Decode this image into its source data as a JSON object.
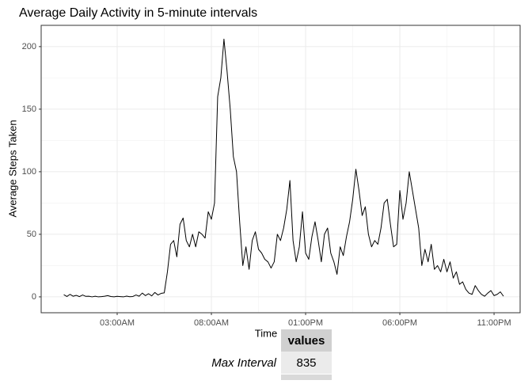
{
  "chart_data": {
    "type": "line",
    "title": "Average Daily Activity in 5-minute intervals",
    "x_label": "Time",
    "y_label": "Average Steps Taken",
    "color": "#000000",
    "grid": true,
    "x": [
      10,
      20,
      30,
      40,
      50,
      60,
      70,
      80,
      90,
      100,
      110,
      120,
      130,
      140,
      150,
      160,
      170,
      180,
      190,
      200,
      210,
      220,
      230,
      240,
      250,
      260,
      270,
      280,
      290,
      300,
      310,
      320,
      330,
      340,
      350,
      360,
      370,
      380,
      390,
      400,
      410,
      420,
      430,
      440,
      450,
      460,
      470,
      480,
      490,
      500,
      510,
      520,
      530,
      540,
      550,
      560,
      570,
      580,
      590,
      600,
      610,
      620,
      630,
      640,
      650,
      660,
      670,
      680,
      690,
      700,
      710,
      720,
      730,
      740,
      750,
      760,
      770,
      780,
      790,
      800,
      810,
      820,
      830,
      840,
      850,
      860,
      870,
      880,
      890,
      900,
      910,
      920,
      930,
      940,
      950,
      960,
      970,
      980,
      990,
      1000,
      1010,
      1020,
      1030,
      1040,
      1050,
      1060,
      1070,
      1080,
      1090,
      1100,
      1110,
      1120,
      1130,
      1140,
      1150,
      1160,
      1170,
      1180,
      1190,
      1200,
      1210,
      1220,
      1230,
      1240,
      1250,
      1260,
      1270,
      1280,
      1290,
      1300,
      1310,
      1320,
      1330,
      1340,
      1350,
      1360,
      1370,
      1380,
      1390,
      1400,
      1410
    ],
    "values": [
      1.7,
      0.3,
      2,
      0.5,
      1.2,
      0.2,
      1.5,
      0.4,
      0.5,
      0,
      0.5,
      0,
      0.2,
      0.5,
      1,
      0.3,
      0,
      0.4,
      0.2,
      0,
      0.6,
      0.1,
      0.3,
      1.5,
      0.5,
      3,
      1,
      2.5,
      0.8,
      3.5,
      1.5,
      2.8,
      3.2,
      20,
      42,
      45,
      32,
      58,
      63,
      45,
      40,
      50,
      40,
      52,
      50,
      47,
      68,
      62,
      75,
      160,
      175,
      206,
      180,
      150,
      112,
      100,
      60,
      25,
      40,
      22,
      45,
      52,
      38,
      35,
      30,
      28,
      23,
      28,
      50,
      45,
      55,
      70,
      93,
      45,
      28,
      40,
      68,
      35,
      30,
      48,
      60,
      45,
      28,
      50,
      55,
      35,
      28,
      18,
      40,
      33,
      48,
      60,
      78,
      102,
      85,
      65,
      72,
      50,
      40,
      45,
      42,
      55,
      75,
      78,
      58,
      40,
      42,
      85,
      62,
      75,
      100,
      85,
      70,
      55,
      25,
      38,
      28,
      42,
      22,
      25,
      20,
      30,
      20,
      28,
      15,
      20,
      10,
      12,
      6,
      3,
      2,
      9,
      5,
      2,
      0.5,
      3,
      5,
      1,
      2,
      4,
      0.5
    ],
    "xlim": [
      -62,
      1463
    ],
    "xticks": [
      {
        "value": 180,
        "label": "03:00AM"
      },
      {
        "value": 480,
        "label": "08:00AM"
      },
      {
        "value": 780,
        "label": "01:00PM"
      },
      {
        "value": 1080,
        "label": "06:00PM"
      },
      {
        "value": 1380,
        "label": "11:00PM"
      }
    ],
    "ylim": [
      -12.7,
      217
    ],
    "yticks": [
      0,
      50,
      100,
      150,
      200
    ]
  },
  "table": {
    "header": "values",
    "rows": [
      [
        "Max Interval",
        "835"
      ]
    ]
  }
}
